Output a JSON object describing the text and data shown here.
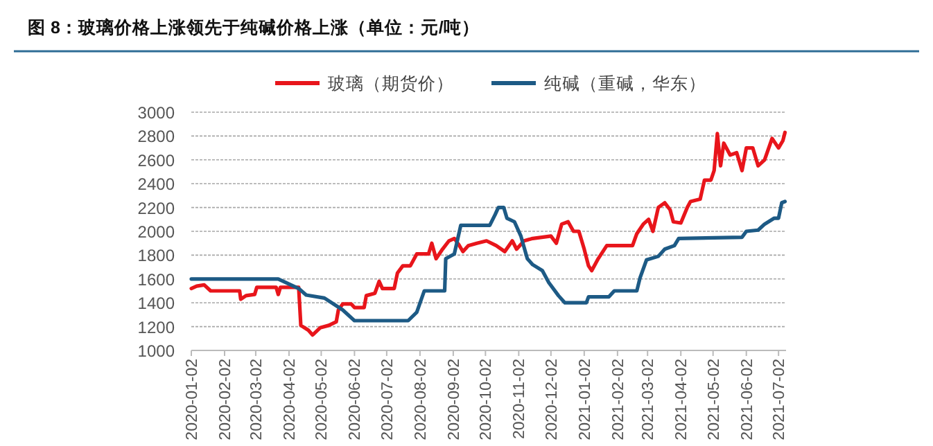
{
  "chart_data": {
    "type": "line",
    "title": "图 8：玻璃价格上涨领先于纯碱价格上涨（单位：元/吨）",
    "series": [
      {
        "name": "玻璃（期货价）",
        "color": "#e8151b",
        "x": [
          "2020-01-02",
          "2020-01-07",
          "2020-01-14",
          "2020-01-20",
          "2020-02-16",
          "2020-02-17",
          "2020-02-22",
          "2020-03-01",
          "2020-03-03",
          "2020-03-21",
          "2020-03-23",
          "2020-03-25",
          "2020-04-11",
          "2020-04-13",
          "2020-04-20",
          "2020-04-24",
          "2020-05-01",
          "2020-05-09",
          "2020-05-16",
          "2020-05-18",
          "2020-05-22",
          "2020-05-30",
          "2020-06-02",
          "2020-06-11",
          "2020-06-13",
          "2020-06-21",
          "2020-06-25",
          "2020-06-28",
          "2020-07-09",
          "2020-07-12",
          "2020-07-17",
          "2020-07-24",
          "2020-07-30",
          "2020-08-10",
          "2020-08-13",
          "2020-08-17",
          "2020-08-23",
          "2020-08-29",
          "2020-09-03",
          "2020-09-07",
          "2020-09-11",
          "2020-09-16",
          "2020-09-24",
          "2020-10-03",
          "2020-10-12",
          "2020-10-20",
          "2020-10-27",
          "2020-10-31",
          "2020-11-07",
          "2020-11-15",
          "2020-12-02",
          "2020-12-07",
          "2020-12-12",
          "2020-12-18",
          "2020-12-23",
          "2020-12-28",
          "2021-01-02",
          "2021-01-06",
          "2021-01-09",
          "2021-01-15",
          "2021-01-23",
          "2021-02-16",
          "2021-02-20",
          "2021-02-26",
          "2021-03-03",
          "2021-03-07",
          "2021-03-12",
          "2021-03-18",
          "2021-03-23",
          "2021-03-26",
          "2021-04-02",
          "2021-04-08",
          "2021-04-11",
          "2021-04-20",
          "2021-04-24",
          "2021-04-30",
          "2021-05-03",
          "2021-05-06",
          "2021-05-09",
          "2021-05-12",
          "2021-05-18",
          "2021-05-24",
          "2021-05-29",
          "2021-06-02",
          "2021-06-08",
          "2021-06-13",
          "2021-06-19",
          "2021-06-26",
          "2021-07-02",
          "2021-07-06",
          "2021-07-08"
        ],
        "values": [
          1520,
          1540,
          1550,
          1500,
          1500,
          1430,
          1460,
          1470,
          1530,
          1530,
          1470,
          1530,
          1530,
          1210,
          1170,
          1130,
          1190,
          1210,
          1240,
          1340,
          1390,
          1390,
          1360,
          1360,
          1460,
          1480,
          1580,
          1520,
          1520,
          1650,
          1710,
          1710,
          1810,
          1810,
          1900,
          1770,
          1850,
          1920,
          1940,
          1890,
          1830,
          1880,
          1900,
          1920,
          1880,
          1830,
          1920,
          1850,
          1920,
          1940,
          1960,
          1900,
          2060,
          2080,
          2000,
          2000,
          1850,
          1710,
          1670,
          1770,
          1880,
          1880,
          1980,
          2060,
          2100,
          2000,
          2200,
          2240,
          2180,
          2080,
          2070,
          2200,
          2250,
          2270,
          2430,
          2430,
          2510,
          2820,
          2550,
          2740,
          2640,
          2660,
          2510,
          2700,
          2700,
          2550,
          2600,
          2780,
          2700,
          2760,
          2830
        ]
      },
      {
        "name": "纯碱（重碱，华东）",
        "color": "#1d5a85",
        "x": [
          "2020-01-02",
          "2020-03-23",
          "2020-04-11",
          "2020-04-18",
          "2020-05-05",
          "2020-05-22",
          "2020-06-02",
          "2020-07-22",
          "2020-07-30",
          "2020-08-06",
          "2020-08-25",
          "2020-08-26",
          "2020-09-03",
          "2020-09-09",
          "2020-10-06",
          "2020-10-11",
          "2020-10-14",
          "2020-10-19",
          "2020-10-22",
          "2020-10-29",
          "2020-11-04",
          "2020-11-10",
          "2020-11-15",
          "2020-11-24",
          "2020-11-30",
          "2020-12-09",
          "2020-12-15",
          "2021-01-04",
          "2021-01-06",
          "2021-01-25",
          "2021-01-30",
          "2021-02-20",
          "2021-02-23",
          "2021-03-01",
          "2021-03-12",
          "2021-03-18",
          "2021-03-27",
          "2021-03-31",
          "2021-05-29",
          "2021-06-02",
          "2021-06-13",
          "2021-06-19",
          "2021-06-28",
          "2021-07-02",
          "2021-07-05",
          "2021-07-08"
        ],
        "values": [
          1600,
          1600,
          1520,
          1465,
          1440,
          1340,
          1250,
          1250,
          1320,
          1500,
          1500,
          1770,
          1810,
          2050,
          2050,
          2140,
          2200,
          2200,
          2110,
          2080,
          1960,
          1770,
          1720,
          1670,
          1570,
          1460,
          1400,
          1400,
          1450,
          1450,
          1500,
          1500,
          1610,
          1760,
          1790,
          1850,
          1880,
          1940,
          1950,
          2000,
          2010,
          2060,
          2110,
          2110,
          2240,
          2250
        ]
      }
    ],
    "xlim": [
      "2020-01-02",
      "2021-07-09"
    ],
    "xticks": [
      "2020-01-02",
      "2020-02-02",
      "2020-03-02",
      "2020-04-02",
      "2020-05-02",
      "2020-06-02",
      "2020-07-02",
      "2020-08-02",
      "2020-09-02",
      "2020-10-02",
      "2020-11-02",
      "2020-12-02",
      "2021-01-02",
      "2021-02-02",
      "2021-03-02",
      "2021-04-02",
      "2021-05-02",
      "2021-06-02",
      "2021-07-02"
    ],
    "ylim": [
      1000,
      3000
    ],
    "yticks": [
      1000,
      1200,
      1400,
      1600,
      1800,
      2000,
      2200,
      2400,
      2600,
      2800,
      3000
    ],
    "grid": "y",
    "legend": "top",
    "line_style": "solid",
    "marker": "none"
  }
}
